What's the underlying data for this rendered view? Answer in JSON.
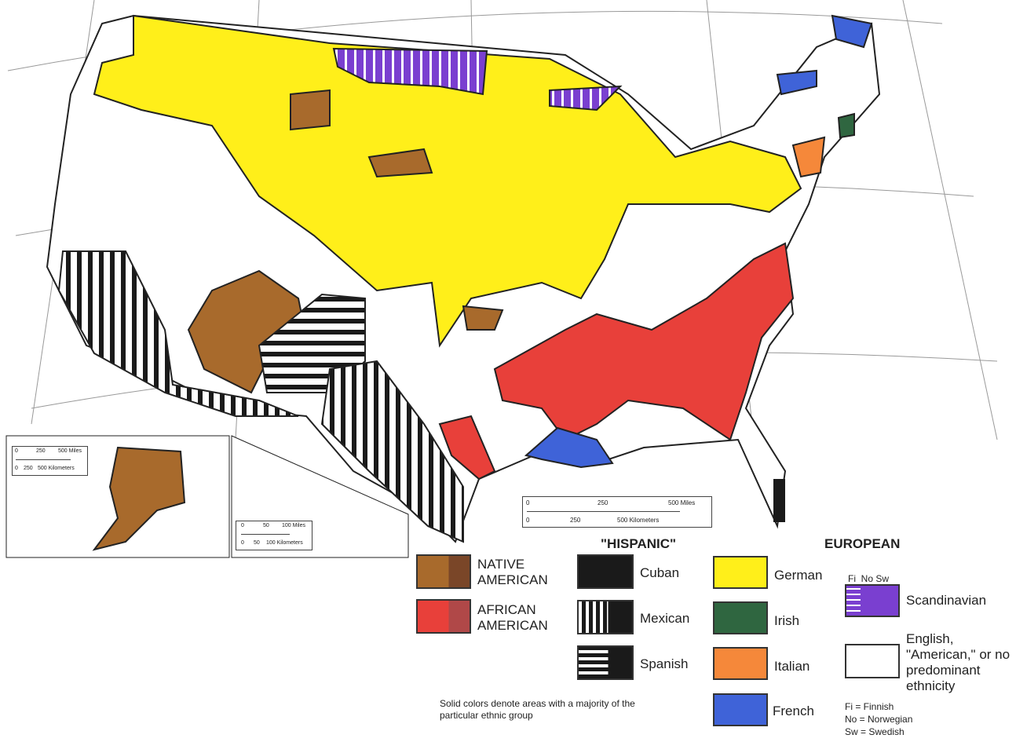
{
  "legend": {
    "headers": {
      "hispanic": "\"HISPANIC\"",
      "european": "EUROPEAN"
    },
    "items": [
      {
        "id": "native-american",
        "label": "NATIVE AMERICAN",
        "colors": [
          "#a86a2c",
          "#7a4628"
        ],
        "pattern": "solid"
      },
      {
        "id": "african-american",
        "label": "AFRICAN AMERICAN",
        "colors": [
          "#e8403a",
          "#b04848"
        ],
        "pattern": "solid"
      },
      {
        "id": "cuban",
        "label": "Cuban",
        "colors": [
          "#1a1a1a"
        ],
        "pattern": "solid"
      },
      {
        "id": "mexican",
        "label": "Mexican",
        "colors": [
          "#1a1a1a"
        ],
        "pattern": "vertical-stripes"
      },
      {
        "id": "spanish",
        "label": "Spanish",
        "colors": [
          "#1a1a1a"
        ],
        "pattern": "horizontal-stripes"
      },
      {
        "id": "german",
        "label": "German",
        "colors": [
          "#ffef1a"
        ],
        "pattern": "solid"
      },
      {
        "id": "irish",
        "label": "Irish",
        "colors": [
          "#2f6640"
        ],
        "pattern": "solid"
      },
      {
        "id": "italian",
        "label": "Italian",
        "colors": [
          "#f5883a"
        ],
        "pattern": "solid"
      },
      {
        "id": "french",
        "label": "French",
        "colors": [
          "#3f63d8"
        ],
        "pattern": "solid"
      },
      {
        "id": "scandinavian",
        "label": "Scandinavian",
        "colors": [
          "#7a3fd0"
        ],
        "pattern": "stripes",
        "sub_labels": [
          "Fi",
          "No",
          "Sw"
        ]
      },
      {
        "id": "english",
        "label": "English, \"American,\" or no predominant ethnicity",
        "colors": [
          "#ffffff"
        ],
        "pattern": "solid"
      }
    ],
    "note": "Solid colors denote areas with a majority of the particular ethnic group",
    "abbreviations": [
      "Fi = Finnish",
      "No = Norwegian",
      "Sw = Swedish"
    ]
  },
  "scales": {
    "main": {
      "miles": [
        "0",
        "250",
        "500 Miles"
      ],
      "km": [
        "0",
        "250",
        "500 Kilometers"
      ]
    },
    "alaska": {
      "miles": [
        "0",
        "250",
        "500 Miles"
      ],
      "km": [
        "0",
        "250",
        "500 Kilometers"
      ]
    },
    "hawaii": {
      "miles": [
        "0",
        "50",
        "100 Miles"
      ],
      "km": [
        "0",
        "50",
        "100 Kilometers"
      ]
    }
  }
}
